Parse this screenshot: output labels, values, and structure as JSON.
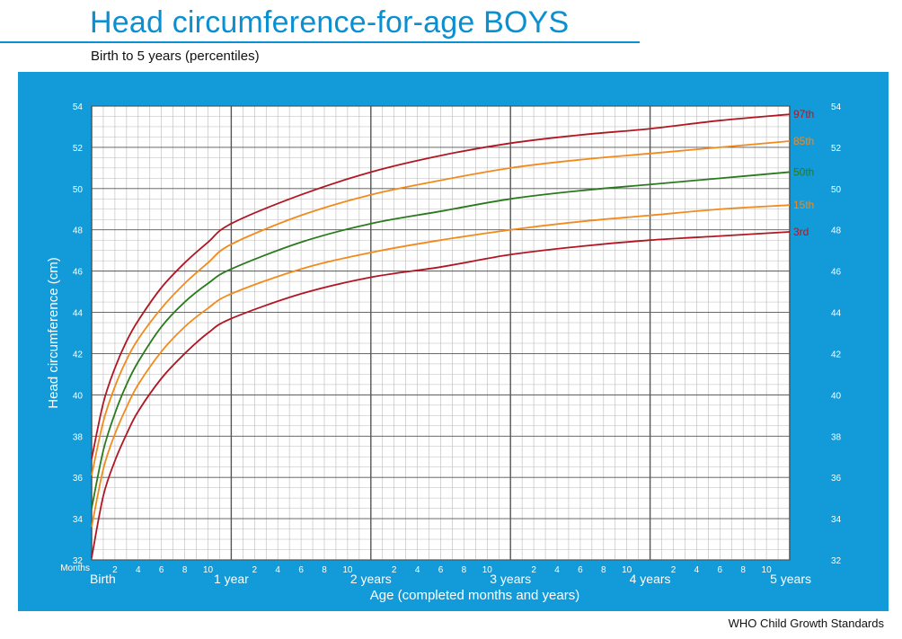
{
  "header": {
    "title": "Head circumference-for-age  BOYS",
    "subtitle": "Birth to 5 years (percentiles)"
  },
  "footer": {
    "text": "WHO Child Growth Standards"
  },
  "colors": {
    "accent": "#0a8fd0",
    "panel": "#129bd8",
    "p3_p97": "#b01722",
    "p15_p85": "#f28a1c",
    "p50": "#2a7a1e",
    "grid_minor": "#b9b9b9",
    "grid_major": "#555555"
  },
  "chart_data": {
    "type": "line",
    "title": "Head circumference-for-age  BOYS",
    "subtitle": "Birth to 5 years (percentiles)",
    "xlabel": "Age (completed months and years)",
    "ylabel": "Head circumference (cm)",
    "x_unit_label": "Months",
    "xlim": [
      0,
      60
    ],
    "ylim": [
      32,
      54
    ],
    "y_ticks": [
      "32",
      "34",
      "36",
      "38",
      "40",
      "42",
      "44",
      "46",
      "48",
      "50",
      "52",
      "54"
    ],
    "x_minor_tick_labels": [
      "2",
      "4",
      "6",
      "8",
      "10"
    ],
    "x_year_labels": [
      "Birth",
      "1 year",
      "2 years",
      "3 years",
      "4 years",
      "5 years"
    ],
    "grid": true,
    "x": [
      0,
      1,
      2,
      3,
      4,
      6,
      8,
      10,
      12,
      18,
      24,
      30,
      36,
      42,
      48,
      54,
      60
    ],
    "series": [
      {
        "name": "97th",
        "color": "#b01722",
        "values": [
          36.9,
          39.6,
          41.3,
          42.6,
          43.6,
          45.2,
          46.4,
          47.4,
          48.3,
          49.7,
          50.8,
          51.6,
          52.2,
          52.6,
          52.9,
          53.3,
          53.6
        ]
      },
      {
        "name": "85th",
        "color": "#f28a1c",
        "values": [
          36.1,
          38.7,
          40.4,
          41.7,
          42.7,
          44.2,
          45.4,
          46.4,
          47.3,
          48.7,
          49.7,
          50.4,
          51.0,
          51.4,
          51.7,
          52.0,
          52.3
        ]
      },
      {
        "name": "50th",
        "color": "#2a7a1e",
        "values": [
          34.5,
          37.3,
          39.1,
          40.5,
          41.6,
          43.3,
          44.5,
          45.4,
          46.1,
          47.4,
          48.3,
          48.9,
          49.5,
          49.9,
          50.2,
          50.5,
          50.8
        ]
      },
      {
        "name": "15th",
        "color": "#f28a1c",
        "values": [
          33.6,
          36.4,
          38.1,
          39.4,
          40.5,
          42.1,
          43.3,
          44.2,
          44.9,
          46.1,
          46.9,
          47.5,
          48.0,
          48.4,
          48.7,
          49.0,
          49.2
        ]
      },
      {
        "name": "3rd",
        "color": "#b01722",
        "values": [
          32.1,
          35.1,
          36.8,
          38.1,
          39.2,
          40.8,
          42.0,
          43.0,
          43.7,
          44.9,
          45.7,
          46.2,
          46.8,
          47.2,
          47.5,
          47.7,
          47.9
        ]
      }
    ]
  }
}
